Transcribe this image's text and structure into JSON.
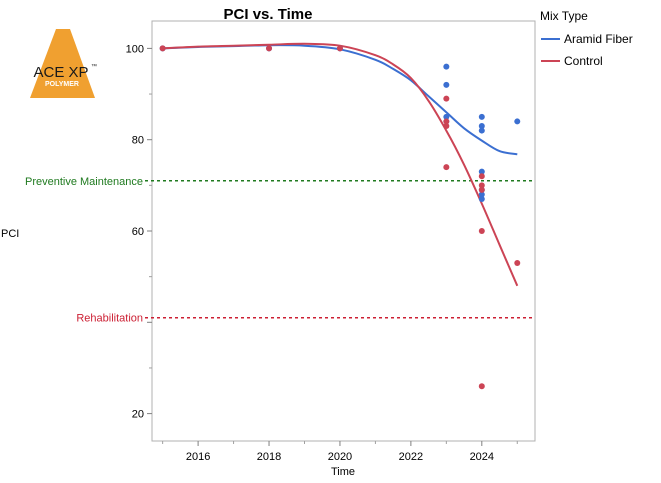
{
  "chart_data": {
    "type": "scatter",
    "title": "PCI vs. Time",
    "xlabel": "Time",
    "ylabel": "PCI",
    "xlim": [
      2014.7,
      2025.5
    ],
    "ylim": [
      14,
      106
    ],
    "x_ticks": [
      2016,
      2018,
      2020,
      2022,
      2024
    ],
    "y_ticks": [
      20,
      40,
      60,
      80,
      100
    ],
    "y_tick_labels": [
      "20",
      "",
      "60",
      "80",
      "100"
    ],
    "grid": false,
    "legend": {
      "title": "Mix Type",
      "placement": "right",
      "entries": [
        {
          "name": "Aramid Fiber",
          "color": "#3b6fd1"
        },
        {
          "name": "Control",
          "color": "#cc4455"
        }
      ]
    },
    "series": [
      {
        "name": "Aramid Fiber",
        "color": "#3b6fd1",
        "points": [
          [
            2015,
            100
          ],
          [
            2018,
            100
          ],
          [
            2020,
            100
          ],
          [
            2023,
            96
          ],
          [
            2023,
            92
          ],
          [
            2023,
            85
          ],
          [
            2023,
            84
          ],
          [
            2024,
            85
          ],
          [
            2024,
            83
          ],
          [
            2024,
            82
          ],
          [
            2024,
            73
          ],
          [
            2024,
            69
          ],
          [
            2024,
            68
          ],
          [
            2024,
            67
          ],
          [
            2025,
            84
          ]
        ],
        "fit": [
          [
            2015,
            100
          ],
          [
            2016,
            100.3
          ],
          [
            2017,
            100.5
          ],
          [
            2018,
            100.7
          ],
          [
            2019,
            100.6
          ],
          [
            2020,
            99.8
          ],
          [
            2021,
            97.5
          ],
          [
            2021.5,
            95.5
          ],
          [
            2022,
            93
          ],
          [
            2022.5,
            89.5
          ],
          [
            2023,
            86
          ],
          [
            2023.5,
            82.5
          ],
          [
            2024,
            79.8
          ],
          [
            2024.5,
            77.5
          ],
          [
            2025,
            76.8
          ]
        ]
      },
      {
        "name": "Control",
        "color": "#cc4455",
        "points": [
          [
            2015,
            100
          ],
          [
            2018,
            100
          ],
          [
            2020,
            100
          ],
          [
            2023,
            89
          ],
          [
            2023,
            84
          ],
          [
            2023,
            83
          ],
          [
            2023,
            74
          ],
          [
            2024,
            72
          ],
          [
            2024,
            70
          ],
          [
            2024,
            69
          ],
          [
            2024,
            60
          ],
          [
            2024,
            26
          ],
          [
            2025,
            53
          ]
        ],
        "fit": [
          [
            2015,
            100
          ],
          [
            2016,
            100.4
          ],
          [
            2017,
            100.6
          ],
          [
            2018,
            100.8
          ],
          [
            2019,
            101
          ],
          [
            2020,
            100.6
          ],
          [
            2021,
            98.5
          ],
          [
            2021.5,
            96.5
          ],
          [
            2022,
            93.5
          ],
          [
            2022.5,
            88.5
          ],
          [
            2023,
            82
          ],
          [
            2023.5,
            74.5
          ],
          [
            2024,
            66
          ],
          [
            2024.5,
            57
          ],
          [
            2025,
            48
          ]
        ]
      }
    ],
    "reference_lines": [
      {
        "label": "Preventive Maintenance",
        "y": 71,
        "color": "#1f7a1f",
        "style": "dashed"
      },
      {
        "label": "Rehabilitation",
        "y": 41,
        "color": "#cc1f33",
        "style": "dashed"
      }
    ]
  },
  "logo": {
    "text": "ACE XP",
    "trademark": "™",
    "subtext": "POLYMER",
    "color": "#f0a030"
  }
}
